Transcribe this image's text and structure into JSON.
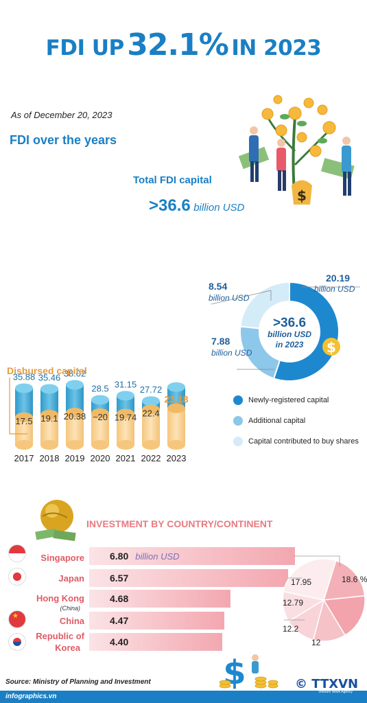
{
  "header": {
    "title_pre": "FDI UP",
    "title_pct": "32.1%",
    "title_post": "IN 2023",
    "as_of": "As of December 20, 2023"
  },
  "section1": {
    "title": "FDI over the years",
    "total_label": "Total FDI capital",
    "total_value": ">36.6",
    "total_unit": "billion USD",
    "disbursed_label": "Disbursed capital"
  },
  "chart_data": [
    {
      "type": "bar",
      "title": "FDI over the years",
      "categories": [
        "2017",
        "2018",
        "2019",
        "2020",
        "2021",
        "2022",
        "2023"
      ],
      "series": [
        {
          "name": "Total FDI capital",
          "values": [
            35.88,
            35.46,
            38.02,
            28.5,
            31.15,
            27.72,
            36.6
          ],
          "labels": [
            "35.88",
            "35.46",
            "38.02",
            "28.5",
            "31.15",
            "27.72",
            ""
          ]
        },
        {
          "name": "Disbursed capital",
          "values": [
            17.5,
            19.1,
            20.38,
            20,
            19.74,
            22.4,
            23.18
          ],
          "labels": [
            "17.5",
            "19.1",
            "20.38",
            "~20",
            "19.74",
            "22.4",
            "23.18"
          ]
        }
      ],
      "colors": {
        "total": "#3aa7d4",
        "disbursed": "#f7cf8e"
      }
    },
    {
      "type": "pie",
      "title": "",
      "center_value": ">36.6",
      "center_unit": "billion USD",
      "center_year": "in 2023",
      "slices": [
        {
          "name": "Newly-registered capital",
          "value": 20.19,
          "label": "20.19",
          "unit": "billion USD",
          "color": "#1e88cf"
        },
        {
          "name": "Additional capital",
          "value": 7.88,
          "label": "7.88",
          "unit": "billion USD",
          "color": "#8dc7ea"
        },
        {
          "name": "Capital contributed to buy shares",
          "value": 8.54,
          "label": "8.54",
          "unit": "billion USD",
          "color": "#d4ebf8"
        }
      ]
    },
    {
      "type": "bar",
      "title": "INVESTMENT BY COUNTRY/CONTINENT",
      "categories": [
        "Singapore",
        "Japan",
        "Hong Kong",
        "China",
        "Republic of Korea"
      ],
      "values": [
        6.8,
        6.57,
        4.68,
        4.47,
        4.4
      ],
      "value_labels": [
        "6.80",
        "6.57",
        "4.68",
        "4.47",
        "4.40"
      ],
      "unit": "billion USD"
    },
    {
      "type": "pie",
      "title": "",
      "slices": [
        {
          "label": "18.6 %",
          "value": 18.6
        },
        {
          "label": "17.95",
          "value": 17.95
        },
        {
          "label": "12.79",
          "value": 12.79
        },
        {
          "label": "12.2",
          "value": 12.2
        },
        {
          "label": "12",
          "value": 12
        }
      ]
    }
  ],
  "section2": {
    "title": "INVESTMENT BY COUNTRY/CONTINENT",
    "countries": [
      {
        "name": "Singapore",
        "value": "6.80",
        "flag": "singapore-flag"
      },
      {
        "name": "Japan",
        "value": "6.57",
        "flag": "japan-flag"
      },
      {
        "name": "Hong Kong",
        "sub": "(China)",
        "value": "4.68",
        "flag": ""
      },
      {
        "name": "China",
        "value": "4.47",
        "flag": "china-flag"
      },
      {
        "name": "Republic of",
        "name2": "Korea",
        "value": "4.40",
        "flag": "korea-flag"
      }
    ],
    "unit": "billion USD"
  },
  "footer": {
    "source": "Source: Ministry of Planning and Investment",
    "site": "infographics.vn",
    "brand": "© TTXVN",
    "brand_sub": "Vietnam News Agency"
  }
}
